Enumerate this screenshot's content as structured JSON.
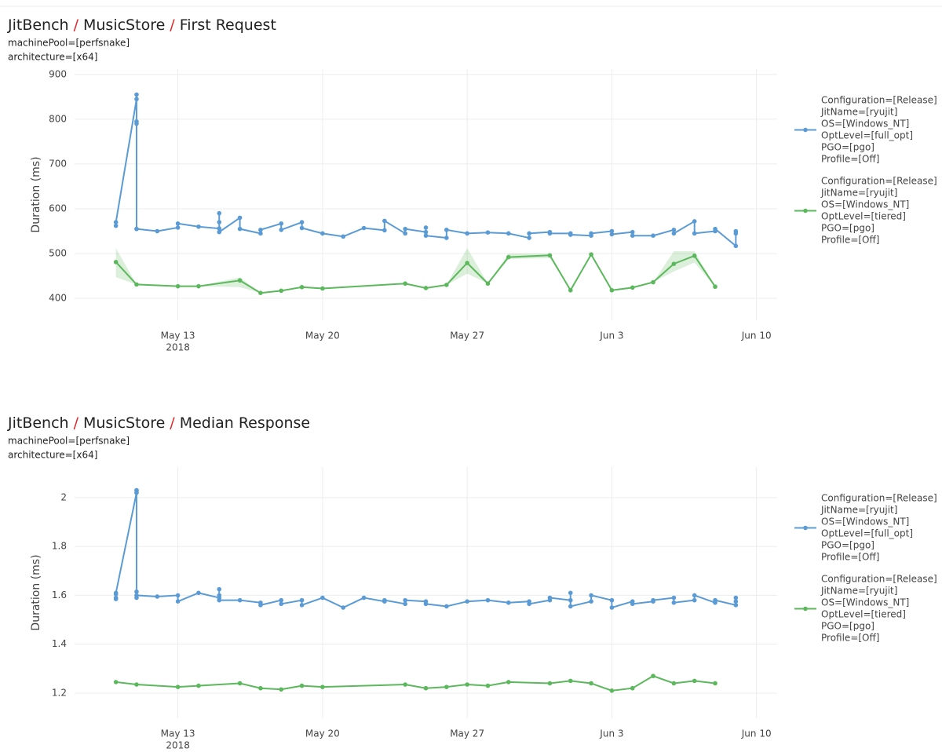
{
  "chart_data": [
    {
      "type": "line",
      "title_parts": [
        "JitBench",
        "/",
        "MusicStore",
        "/",
        "First Request"
      ],
      "title_separator_color": "#e0262b",
      "subtitle": [
        "machinePool=[perfsnake]",
        "architecture=[x64]"
      ],
      "ylabel": "Duration (ms)",
      "grid": true,
      "legend": "right",
      "xlim": [
        "2018-05-08",
        "2018-06-11"
      ],
      "xticks": [
        {
          "value": "2018-05-13",
          "label": [
            "May 13",
            "2018"
          ]
        },
        {
          "value": "2018-05-20",
          "label": [
            "May 20"
          ]
        },
        {
          "value": "2018-05-27",
          "label": [
            "May 27"
          ]
        },
        {
          "value": "2018-06-03",
          "label": [
            "Jun 3"
          ]
        },
        {
          "value": "2018-06-10",
          "label": [
            "Jun 10"
          ]
        }
      ],
      "ylim": [
        351,
        912
      ],
      "yticks": [
        400,
        500,
        600,
        700,
        800,
        900
      ],
      "series": [
        {
          "name": [
            "Configuration=[Release]",
            "JitName=[ryujit]",
            "OS=[Windows_NT]",
            "OptLevel=[full_opt]",
            "PGO=[pgo]",
            "Profile=[Off]"
          ],
          "color": "#5b9bd5",
          "x": [
            "2018-05-10",
            "2018-05-10",
            "2018-05-11",
            "2018-05-11",
            "2018-05-11",
            "2018-05-11",
            "2018-05-11",
            "2018-05-11",
            "2018-05-12",
            "2018-05-13",
            "2018-05-13",
            "2018-05-14",
            "2018-05-15",
            "2018-05-15",
            "2018-05-15",
            "2018-05-15",
            "2018-05-16",
            "2018-05-16",
            "2018-05-17",
            "2018-05-17",
            "2018-05-18",
            "2018-05-18",
            "2018-05-19",
            "2018-05-19",
            "2018-05-20",
            "2018-05-21",
            "2018-05-22",
            "2018-05-23",
            "2018-05-23",
            "2018-05-24",
            "2018-05-24",
            "2018-05-25",
            "2018-05-25",
            "2018-05-25",
            "2018-05-26",
            "2018-05-26",
            "2018-05-27",
            "2018-05-28",
            "2018-05-29",
            "2018-05-30",
            "2018-05-30",
            "2018-05-31",
            "2018-05-31",
            "2018-06-01",
            "2018-06-01",
            "2018-06-02",
            "2018-06-02",
            "2018-06-03",
            "2018-06-03",
            "2018-06-04",
            "2018-06-04",
            "2018-06-05",
            "2018-06-06",
            "2018-06-06",
            "2018-06-07",
            "2018-06-07",
            "2018-06-08",
            "2018-06-08",
            "2018-06-09",
            "2018-06-09",
            "2018-06-09"
          ],
          "values": [
            562,
            570,
            845,
            855,
            555,
            790,
            795,
            555,
            550,
            558,
            567,
            560,
            556,
            570,
            590,
            548,
            580,
            555,
            545,
            553,
            567,
            553,
            570,
            557,
            545,
            538,
            557,
            552,
            573,
            545,
            555,
            548,
            558,
            540,
            535,
            553,
            545,
            547,
            545,
            535,
            545,
            548,
            545,
            545,
            542,
            540,
            545,
            550,
            543,
            548,
            540,
            540,
            553,
            545,
            572,
            545,
            550,
            555,
            517,
            550,
            545
          ]
        },
        {
          "name": [
            "Configuration=[Release]",
            "JitName=[ryujit]",
            "OS=[Windows_NT]",
            "OptLevel=[tiered]",
            "PGO=[pgo]",
            "Profile=[Off]"
          ],
          "color": "#5cb85c",
          "x": [
            "2018-05-10",
            "2018-05-11",
            "2018-05-13",
            "2018-05-14",
            "2018-05-16",
            "2018-05-17",
            "2018-05-18",
            "2018-05-19",
            "2018-05-20",
            "2018-05-24",
            "2018-05-25",
            "2018-05-26",
            "2018-05-27",
            "2018-05-28",
            "2018-05-29",
            "2018-05-31",
            "2018-06-01",
            "2018-06-02",
            "2018-06-03",
            "2018-06-04",
            "2018-06-05",
            "2018-06-06",
            "2018-06-07",
            "2018-06-08"
          ],
          "values": [
            481,
            431,
            427,
            427,
            440,
            412,
            417,
            425,
            422,
            433,
            423,
            430,
            479,
            433,
            492,
            496,
            418,
            498,
            418,
            424,
            436,
            477,
            495,
            426
          ],
          "lower": [
            447,
            431,
            427,
            427,
            425,
            412,
            417,
            425,
            422,
            433,
            423,
            430,
            455,
            433,
            488,
            490,
            418,
            498,
            418,
            424,
            436,
            460,
            480,
            426
          ],
          "upper": [
            512,
            431,
            427,
            427,
            447,
            412,
            417,
            425,
            422,
            433,
            423,
            430,
            512,
            433,
            500,
            500,
            418,
            498,
            418,
            424,
            436,
            505,
            505,
            426
          ]
        }
      ]
    },
    {
      "type": "line",
      "title_parts": [
        "JitBench",
        "/",
        "MusicStore",
        "/",
        "Median Response"
      ],
      "title_separator_color": "#e0262b",
      "subtitle": [
        "machinePool=[perfsnake]",
        "architecture=[x64]"
      ],
      "ylabel": "Duration (ms)",
      "grid": true,
      "legend": "right",
      "xlim": [
        "2018-05-08",
        "2018-06-11"
      ],
      "xticks": [
        {
          "value": "2018-05-13",
          "label": [
            "May 13",
            "2018"
          ]
        },
        {
          "value": "2018-05-20",
          "label": [
            "May 20"
          ]
        },
        {
          "value": "2018-05-27",
          "label": [
            "May 27"
          ]
        },
        {
          "value": "2018-06-03",
          "label": [
            "Jun 3"
          ]
        },
        {
          "value": "2018-06-10",
          "label": [
            "Jun 10"
          ]
        }
      ],
      "ylim": [
        1.097,
        2.125
      ],
      "yticks": [
        1.2,
        1.4,
        1.6,
        1.8,
        2
      ],
      "series": [
        {
          "name": [
            "Configuration=[Release]",
            "JitName=[ryujit]",
            "OS=[Windows_NT]",
            "OptLevel=[full_opt]",
            "PGO=[pgo]",
            "Profile=[Off]"
          ],
          "color": "#5b9bd5",
          "x": [
            "2018-05-10",
            "2018-05-10",
            "2018-05-10",
            "2018-05-10",
            "2018-05-11",
            "2018-05-11",
            "2018-05-11",
            "2018-05-11",
            "2018-05-11",
            "2018-05-11",
            "2018-05-11",
            "2018-05-12",
            "2018-05-13",
            "2018-05-13",
            "2018-05-14",
            "2018-05-15",
            "2018-05-15",
            "2018-05-15",
            "2018-05-15",
            "2018-05-16",
            "2018-05-17",
            "2018-05-17",
            "2018-05-18",
            "2018-05-18",
            "2018-05-19",
            "2018-05-19",
            "2018-05-20",
            "2018-05-21",
            "2018-05-22",
            "2018-05-23",
            "2018-05-23",
            "2018-05-24",
            "2018-05-24",
            "2018-05-25",
            "2018-05-25",
            "2018-05-26",
            "2018-05-27",
            "2018-05-28",
            "2018-05-29",
            "2018-05-30",
            "2018-05-30",
            "2018-05-31",
            "2018-05-31",
            "2018-06-01",
            "2018-06-01",
            "2018-06-01",
            "2018-06-02",
            "2018-06-02",
            "2018-06-03",
            "2018-06-03",
            "2018-06-04",
            "2018-06-04",
            "2018-06-05",
            "2018-06-05",
            "2018-06-06",
            "2018-06-06",
            "2018-06-07",
            "2018-06-07",
            "2018-06-08",
            "2018-06-08",
            "2018-06-09",
            "2018-06-09",
            "2018-06-09"
          ],
          "values": [
            1.585,
            1.605,
            1.59,
            1.61,
            2.02,
            2.03,
            1.59,
            2.02,
            2.03,
            1.615,
            1.6,
            1.595,
            1.6,
            1.575,
            1.61,
            1.59,
            1.6,
            1.625,
            1.58,
            1.58,
            1.57,
            1.56,
            1.58,
            1.565,
            1.58,
            1.56,
            1.59,
            1.55,
            1.59,
            1.575,
            1.58,
            1.565,
            1.58,
            1.575,
            1.565,
            1.555,
            1.575,
            1.58,
            1.57,
            1.575,
            1.565,
            1.58,
            1.59,
            1.58,
            1.61,
            1.555,
            1.575,
            1.6,
            1.58,
            1.55,
            1.575,
            1.565,
            1.575,
            1.58,
            1.59,
            1.57,
            1.58,
            1.6,
            1.57,
            1.58,
            1.56,
            1.59,
            1.575
          ]
        },
        {
          "name": [
            "Configuration=[Release]",
            "JitName=[ryujit]",
            "OS=[Windows_NT]",
            "OptLevel=[tiered]",
            "PGO=[pgo]",
            "Profile=[Off]"
          ],
          "color": "#5cb85c",
          "x": [
            "2018-05-10",
            "2018-05-11",
            "2018-05-13",
            "2018-05-14",
            "2018-05-16",
            "2018-05-17",
            "2018-05-18",
            "2018-05-19",
            "2018-05-20",
            "2018-05-24",
            "2018-05-25",
            "2018-05-26",
            "2018-05-27",
            "2018-05-28",
            "2018-05-29",
            "2018-05-31",
            "2018-06-01",
            "2018-06-02",
            "2018-06-03",
            "2018-06-04",
            "2018-06-05",
            "2018-06-06",
            "2018-06-07",
            "2018-06-08"
          ],
          "values": [
            1.245,
            1.235,
            1.225,
            1.23,
            1.24,
            1.22,
            1.215,
            1.23,
            1.225,
            1.235,
            1.22,
            1.225,
            1.235,
            1.23,
            1.245,
            1.24,
            1.25,
            1.24,
            1.21,
            1.22,
            1.27,
            1.24,
            1.25,
            1.24
          ]
        }
      ]
    }
  ]
}
